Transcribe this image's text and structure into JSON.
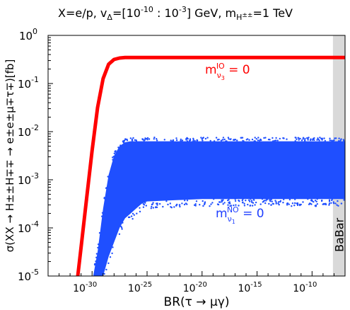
{
  "chart_data": {
    "type": "scatter",
    "title": {
      "main": "X=e/p, v",
      "sub_delta": "Δ",
      "range_open": "=[10",
      "range_exp1": "-10",
      "range_mid": " : 10",
      "range_exp2": "-3",
      "range_close": "] GeV, m",
      "sub_mass": "H",
      "sub_mass_sup": "±±",
      "mass_val": "=1 TeV"
    },
    "xlabel": "BR(τ → μγ)",
    "ylabel": "σ(XX → H±±H∓∓ → e±e±μ∓τ∓)[fb]",
    "xscale": "log",
    "yscale": "log",
    "xlim_log10": [
      -34,
      -7
    ],
    "ylim_log10": [
      -5,
      0
    ],
    "x_ticks": [
      {
        "log": -30,
        "base": "10",
        "exp": "-30"
      },
      {
        "log": -25,
        "base": "10",
        "exp": "-25"
      },
      {
        "log": -20,
        "base": "10",
        "exp": "-20"
      },
      {
        "log": -15,
        "base": "10",
        "exp": "-15"
      },
      {
        "log": -10,
        "base": "10",
        "exp": "-10"
      }
    ],
    "y_ticks": [
      {
        "log": 0,
        "base": "10",
        "exp": "0"
      },
      {
        "log": -1,
        "base": "10",
        "exp": "-1"
      },
      {
        "log": -2,
        "base": "10",
        "exp": "-2"
      },
      {
        "log": -3,
        "base": "10",
        "exp": "-3"
      },
      {
        "log": -4,
        "base": "10",
        "exp": "-4"
      },
      {
        "log": -5,
        "base": "10",
        "exp": "-5"
      }
    ],
    "excluded_region": {
      "label": "BaBar",
      "x_from_log10": -8.1,
      "color": "#d9d9d9"
    },
    "series": [
      {
        "label_main": "m",
        "label_sub": "ν",
        "label_sub2": "3",
        "label_sup": "IO",
        "label_eq": " = 0",
        "color": "#ff0000",
        "plateau_log10_sigma": -0.46,
        "x_log10": [
          -31.3,
          -31,
          -30.5,
          -30,
          -29.5,
          -29,
          -28.5,
          -28,
          -27.5,
          -27,
          -26.5,
          -26,
          -25,
          -20,
          -15,
          -10,
          -7
        ],
        "y_log10": [
          -5.0,
          -4.4,
          -3.4,
          -2.4,
          -1.5,
          -0.9,
          -0.6,
          -0.5,
          -0.47,
          -0.46,
          -0.46,
          -0.46,
          -0.46,
          -0.46,
          -0.46,
          -0.46,
          -0.46
        ]
      },
      {
        "label_main": "m",
        "label_sub": "ν",
        "label_sub2": "1",
        "label_sup": "NO",
        "label_eq": " = 0",
        "color": "#1f4fff",
        "band_x_log10": [
          -29.9,
          -29.5,
          -29,
          -28.5,
          -28,
          -27.5,
          -27,
          -26.5,
          -26,
          -25.5,
          -25,
          -20,
          -15,
          -10,
          -7
        ],
        "band_upper_log10": [
          -5.0,
          -4.5,
          -3.6,
          -2.9,
          -2.5,
          -2.3,
          -2.22,
          -2.2,
          -2.2,
          -2.2,
          -2.2,
          -2.2,
          -2.2,
          -2.2,
          -2.2
        ],
        "band_lower_log10": [
          -5.0,
          -5.0,
          -5.0,
          -4.6,
          -4.3,
          -4.0,
          -3.8,
          -3.7,
          -3.6,
          -3.5,
          -3.45,
          -3.4,
          -3.4,
          -3.4,
          -3.4
        ]
      }
    ]
  }
}
